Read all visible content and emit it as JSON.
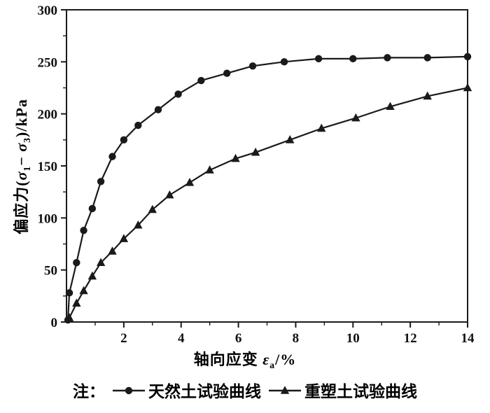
{
  "chart_data": {
    "type": "line",
    "title": "",
    "color": "#1a1a1a",
    "grid": false,
    "legend_position": "bottom",
    "legend_prefix": "注：",
    "xlim": [
      0,
      14
    ],
    "ylim": [
      0,
      300
    ],
    "xticks": [
      2,
      4,
      6,
      8,
      10,
      12,
      14
    ],
    "xminor": [
      1,
      3,
      5,
      7,
      9,
      11,
      13
    ],
    "yticks": [
      0,
      50,
      100,
      150,
      200,
      250,
      300
    ],
    "yminor": [
      25,
      75,
      125,
      175,
      225,
      275
    ],
    "xlabel_parts": {
      "prefix": "轴向应变 ",
      "symbol": "ε",
      "sub": "a",
      "suffix": "/%"
    },
    "ylabel_parts": {
      "p1": "偏应力(",
      "s1": "σ",
      "b1": "1",
      "mid": "− ",
      "s2": "σ",
      "b2": "3",
      "p2": ")/kPa"
    },
    "series": [
      {
        "name": "天然土试验曲线",
        "marker": "circle",
        "x": [
          0.05,
          0.1,
          0.35,
          0.6,
          0.9,
          1.2,
          1.6,
          2.0,
          2.5,
          3.2,
          3.9,
          4.7,
          5.6,
          6.5,
          7.6,
          8.8,
          10.0,
          11.2,
          12.6,
          14.0
        ],
        "y": [
          2,
          28,
          57,
          88,
          109,
          135,
          159,
          175,
          189,
          204,
          219,
          232,
          239,
          246,
          250,
          253,
          253,
          254,
          254,
          255
        ]
      },
      {
        "name": "重塑土试验曲线",
        "marker": "triangle",
        "x": [
          0.1,
          0.35,
          0.6,
          0.9,
          1.2,
          1.6,
          2.0,
          2.5,
          3.0,
          3.6,
          4.3,
          5.0,
          5.9,
          6.6,
          7.8,
          8.9,
          10.1,
          11.3,
          12.6,
          14.0
        ],
        "y": [
          4,
          18,
          30,
          44,
          57,
          68,
          80,
          93,
          108,
          122,
          134,
          146,
          157,
          163,
          175,
          186,
          196,
          207,
          217,
          225
        ]
      }
    ]
  }
}
